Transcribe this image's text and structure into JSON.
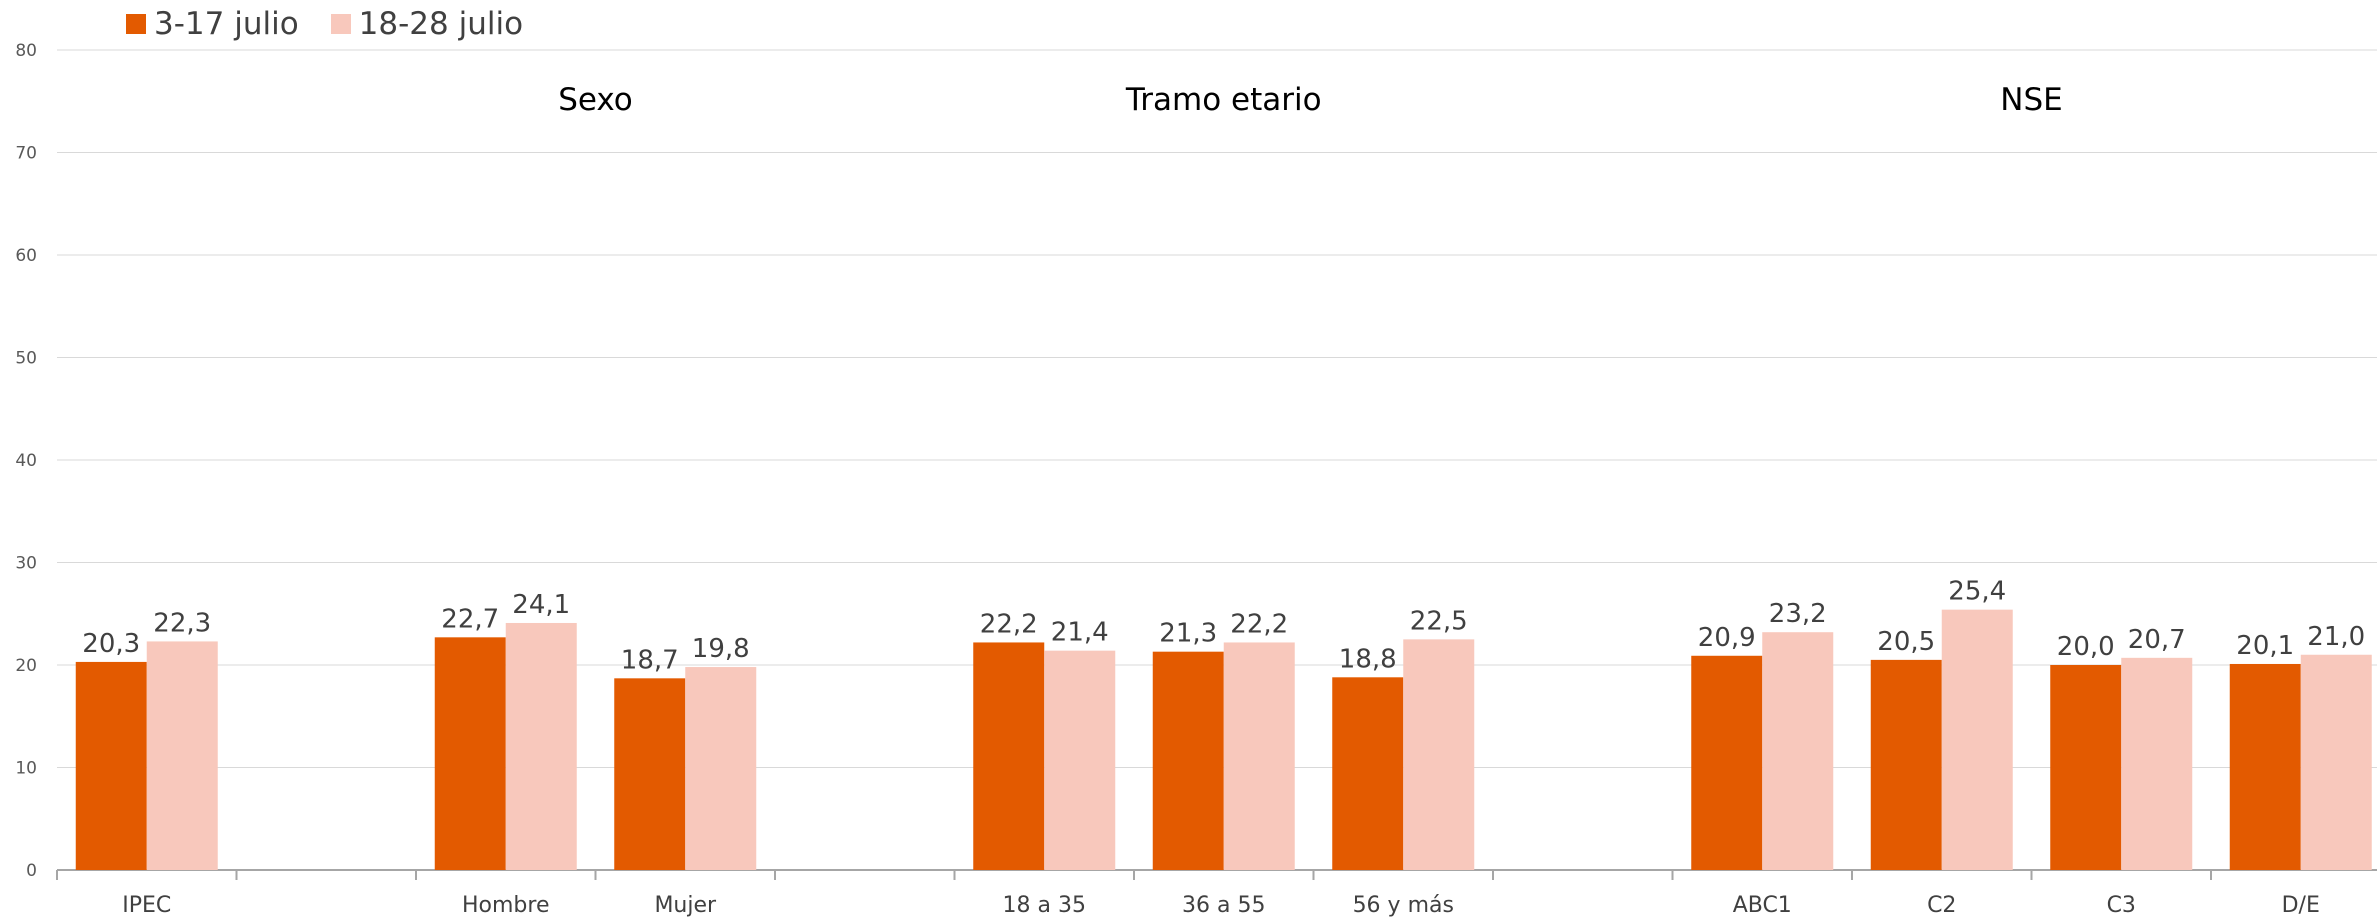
{
  "chart_data": {
    "type": "bar",
    "title": "",
    "xlabel": "",
    "ylabel": "",
    "ylim": [
      0,
      80
    ],
    "yticks": [
      0,
      10,
      20,
      30,
      40,
      50,
      60,
      70,
      80
    ],
    "grid": true,
    "legend_position": "top-left",
    "categories": [
      "IPEC",
      "",
      "Hombre",
      "Mujer",
      "",
      "18 a 35",
      "36 a 55",
      "56 y más",
      "",
      "ABC1",
      "C2",
      "C3",
      "D/E"
    ],
    "groups": [
      {
        "label": "Sexo",
        "categories": [
          "Hombre",
          "Mujer"
        ]
      },
      {
        "label": "Tramo etario",
        "categories": [
          "18 a 35",
          "36 a 55",
          "56 y más"
        ]
      },
      {
        "label": "NSE",
        "categories": [
          "ABC1",
          "C2",
          "C3",
          "D/E"
        ]
      }
    ],
    "series": [
      {
        "name": "3-17 julio",
        "color": "#E35A00",
        "values": [
          20.3,
          null,
          22.7,
          18.7,
          null,
          22.2,
          21.3,
          18.8,
          null,
          20.9,
          20.5,
          20.0,
          20.1
        ],
        "labels": [
          "20,3",
          "",
          "22,7",
          "18,7",
          "",
          "22,2",
          "21,3",
          "18,8",
          "",
          "20,9",
          "20,5",
          "20,0",
          "20,1"
        ]
      },
      {
        "name": "18-28 julio",
        "color": "#F8C8BC",
        "values": [
          22.3,
          null,
          24.1,
          19.8,
          null,
          21.4,
          22.2,
          22.5,
          null,
          23.2,
          25.4,
          20.7,
          21.0
        ],
        "labels": [
          "22,3",
          "",
          "24,1",
          "19,8",
          "",
          "21,4",
          "22,2",
          "22,5",
          "",
          "23,2",
          "25,4",
          "20,7",
          "21,0"
        ]
      }
    ]
  }
}
